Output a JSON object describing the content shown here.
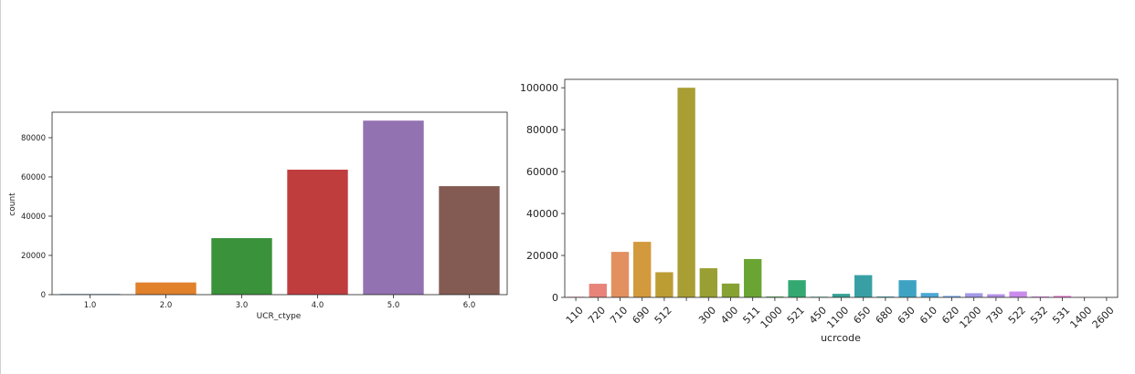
{
  "chart_data": [
    {
      "type": "bar",
      "xlabel": "UCR_ctype",
      "ylabel": "count",
      "categories": [
        "1.0",
        "2.0",
        "3.0",
        "4.0",
        "5.0",
        "6.0"
      ],
      "values": [
        300,
        6200,
        28800,
        63700,
        88700,
        55300
      ],
      "colors": [
        "#3274a1",
        "#e1812c",
        "#3a923a",
        "#c03d3e",
        "#9372b2",
        "#845b53"
      ],
      "ylim": [
        0,
        93000
      ],
      "yticks": [
        0,
        20000,
        40000,
        60000,
        80000
      ]
    },
    {
      "type": "bar",
      "xlabel": "ucrcode",
      "ylabel": "",
      "categories": [
        "110",
        "720",
        "710",
        "690",
        "512",
        "",
        "300",
        "400",
        "511",
        "1000",
        "521",
        "450",
        "1100",
        "650",
        "680",
        "630",
        "610",
        "620",
        "1200",
        "730",
        "522",
        "532",
        "531",
        "1400",
        "2600"
      ],
      "values": [
        300,
        6500,
        21700,
        26500,
        12000,
        100000,
        13900,
        6600,
        18300,
        400,
        8200,
        300,
        1700,
        10600,
        400,
        8200,
        2100,
        700,
        2000,
        1500,
        2800,
        400,
        700,
        100,
        50
      ],
      "colors": [
        "#ea96a3",
        "#e8837a",
        "#e2905f",
        "#d29a3d",
        "#bb9d34",
        "#a99e34",
        "#999f32",
        "#86a233",
        "#6aa534",
        "#46a845",
        "#34a871",
        "#35a588",
        "#37a297",
        "#38a0a4",
        "#39a0b4",
        "#3ea3c2",
        "#4ca7d5",
        "#78a6ea",
        "#a29be7",
        "#b491e6",
        "#ca8bec",
        "#e27ce3",
        "#f075d2",
        "#f27ab8",
        "#f087a6"
      ],
      "ylim": [
        0,
        104000
      ],
      "yticks": [
        0,
        20000,
        40000,
        60000,
        80000,
        100000
      ]
    }
  ]
}
